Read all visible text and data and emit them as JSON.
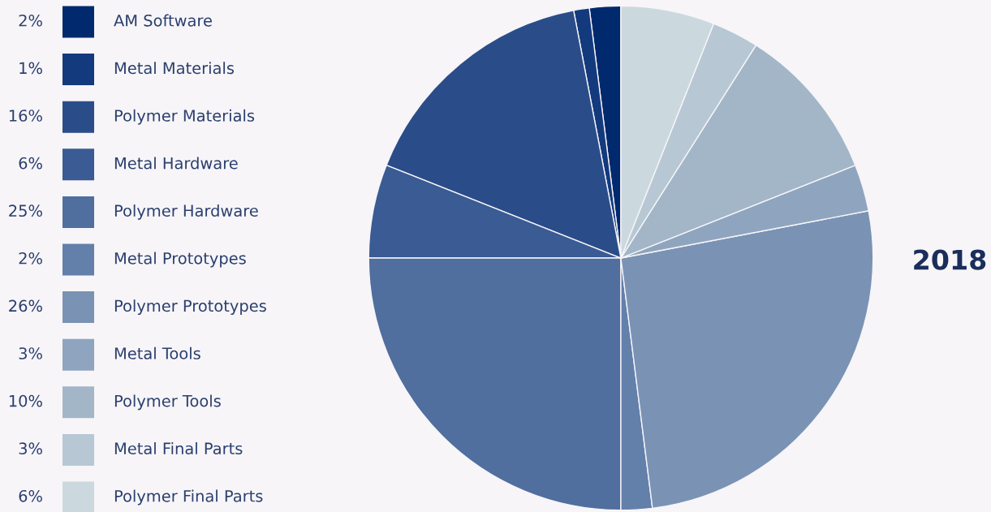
{
  "chart_data": {
    "type": "pie",
    "title": "2018",
    "legend": "left",
    "categories": [
      "AM Software",
      "Metal Materials",
      "Polymer Materials",
      "Metal Hardware",
      "Polymer Hardware",
      "Metal Prototypes",
      "Polymer Prototypes",
      "Metal Tools",
      "Polymer Tools",
      "Metal Final Parts",
      "Polymer Final Parts"
    ],
    "values": [
      2,
      1,
      16,
      6,
      25,
      2,
      26,
      3,
      10,
      3,
      6
    ],
    "value_labels": [
      "2%",
      "1%",
      "16%",
      "6%",
      "25%",
      "2%",
      "26%",
      "3%",
      "10%",
      "3%",
      "6%"
    ],
    "colors": [
      "#012a6e",
      "#143a7e",
      "#2a4d8a",
      "#3a5b93",
      "#506e9e",
      "#6380aa",
      "#7a93b5",
      "#8fa5bf",
      "#a3b6c8",
      "#b7c8d4",
      "#cbd9df"
    ]
  }
}
